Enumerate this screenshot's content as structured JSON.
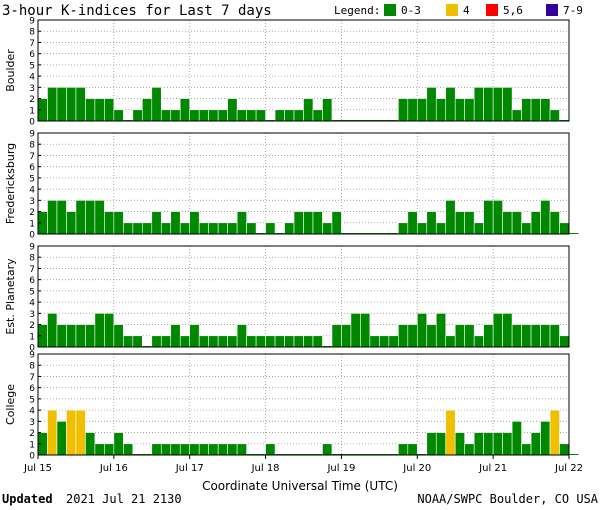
{
  "title": "3-hour K-indices for Last 7 days",
  "legend": {
    "label": "Legend:",
    "items": [
      {
        "label": "0-3",
        "color": "#008800"
      },
      {
        "label": "4",
        "color": "#f0c000"
      },
      {
        "label": "5,6",
        "color": "#ff0000"
      },
      {
        "label": "7-9",
        "color": "#330099"
      }
    ]
  },
  "xlabel": "Coordinate Universal Time (UTC)",
  "footer": {
    "updated_label": "Updated",
    "updated_value": "2021 Jul 21 2130",
    "credit": "NOAA/SWPC Boulder, CO USA"
  },
  "chart_data": {
    "type": "bar",
    "x_ticks": [
      "Jul 15",
      "Jul 16",
      "Jul 17",
      "Jul 18",
      "Jul 19",
      "Jul 20",
      "Jul 21",
      "Jul 22"
    ],
    "y_ticks": [
      0,
      1,
      2,
      3,
      4,
      5,
      6,
      7,
      8,
      9
    ],
    "ylim": [
      0,
      9
    ],
    "intervals_per_day": 8,
    "grid": true,
    "series": [
      {
        "name": "Boulder",
        "values": [
          2,
          3,
          3,
          3,
          3,
          2,
          2,
          2,
          1,
          0,
          1,
          2,
          3,
          1,
          1,
          2,
          1,
          1,
          1,
          1,
          2,
          1,
          1,
          1,
          0,
          1,
          1,
          1,
          2,
          1,
          2,
          0,
          0,
          0,
          0,
          0,
          0,
          0,
          2,
          2,
          2,
          3,
          2,
          3,
          2,
          2,
          3,
          3,
          3,
          3,
          1,
          2,
          2,
          2,
          1,
          0
        ]
      },
      {
        "name": "Fredericksburg",
        "values": [
          2,
          3,
          3,
          2,
          3,
          3,
          3,
          2,
          2,
          1,
          1,
          1,
          2,
          1,
          2,
          1,
          2,
          1,
          1,
          1,
          1,
          2,
          1,
          0,
          1,
          0,
          1,
          2,
          2,
          2,
          1,
          2,
          0,
          0,
          0,
          0,
          0,
          0,
          1,
          2,
          1,
          2,
          1,
          3,
          2,
          2,
          1,
          3,
          3,
          2,
          2,
          1,
          2,
          3,
          2,
          1,
          0
        ]
      },
      {
        "name": "Est. Planetary",
        "values": [
          2,
          3,
          2,
          2,
          2,
          2,
          3,
          3,
          2,
          1,
          1,
          0,
          1,
          1,
          2,
          1,
          2,
          1,
          1,
          1,
          1,
          2,
          1,
          1,
          1,
          1,
          1,
          1,
          1,
          1,
          0,
          2,
          2,
          3,
          3,
          1,
          1,
          1,
          2,
          2,
          3,
          2,
          3,
          1,
          2,
          2,
          1,
          2,
          3,
          3,
          2,
          2,
          2,
          2,
          2,
          1
        ]
      },
      {
        "name": "College",
        "values": [
          2,
          4,
          3,
          4,
          4,
          2,
          1,
          1,
          2,
          1,
          0,
          0,
          1,
          1,
          1,
          1,
          1,
          1,
          1,
          1,
          1,
          1,
          0,
          0,
          1,
          0,
          0,
          0,
          0,
          0,
          1,
          0,
          0,
          0,
          0,
          0,
          0,
          0,
          1,
          1,
          0,
          2,
          2,
          4,
          2,
          1,
          2,
          2,
          2,
          2,
          3,
          1,
          2,
          3,
          4,
          1,
          0
        ]
      }
    ]
  }
}
